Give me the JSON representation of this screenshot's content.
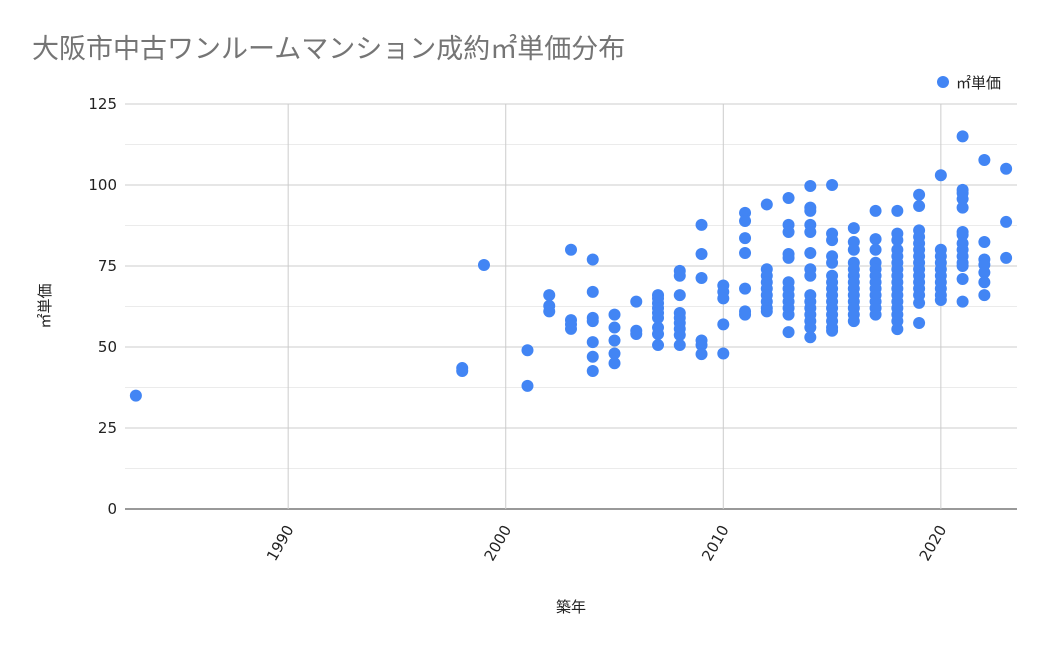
{
  "chart_data": {
    "type": "scatter",
    "title": "大阪市中古ワンルームマンション成約㎡単価分布",
    "xlabel": "築年",
    "ylabel": "㎡単価",
    "xlim": [
      1982.5,
      2023.5
    ],
    "ylim": [
      0,
      125
    ],
    "xticks": [
      "1990",
      "2000",
      "2010",
      "2020"
    ],
    "yticks": [
      "0",
      "25",
      "50",
      "75",
      "100",
      "125"
    ],
    "grid": true,
    "legend_position": "top-right",
    "color": "#4285F4",
    "series": [
      {
        "name": "㎡単価",
        "points": [
          [
            1983,
            35
          ],
          [
            1998,
            43.5
          ],
          [
            1998,
            42.6
          ],
          [
            1999,
            75.3
          ],
          [
            2001,
            49
          ],
          [
            2001,
            38
          ],
          [
            2002,
            66
          ],
          [
            2002,
            62.7
          ],
          [
            2002,
            61
          ],
          [
            2003,
            80
          ],
          [
            2003,
            58.3
          ],
          [
            2003,
            57
          ],
          [
            2003,
            55.6
          ],
          [
            2004,
            77
          ],
          [
            2004,
            67
          ],
          [
            2004,
            59
          ],
          [
            2004,
            58
          ],
          [
            2004,
            51.5
          ],
          [
            2004,
            47
          ],
          [
            2004,
            42.6
          ],
          [
            2005,
            60
          ],
          [
            2005,
            56
          ],
          [
            2005,
            52
          ],
          [
            2005,
            48
          ],
          [
            2005,
            45
          ],
          [
            2006,
            64
          ],
          [
            2006,
            55
          ],
          [
            2006,
            54
          ],
          [
            2007,
            66
          ],
          [
            2007,
            65
          ],
          [
            2007,
            63.5
          ],
          [
            2007,
            62
          ],
          [
            2007,
            60.5
          ],
          [
            2007,
            59
          ],
          [
            2007,
            56
          ],
          [
            2007,
            54
          ],
          [
            2007,
            50.6
          ],
          [
            2008,
            73.5
          ],
          [
            2008,
            72
          ],
          [
            2008,
            66
          ],
          [
            2008,
            60.5
          ],
          [
            2008,
            59
          ],
          [
            2008,
            57.4
          ],
          [
            2008,
            55.6
          ],
          [
            2008,
            53.7
          ],
          [
            2008,
            50.6
          ],
          [
            2009,
            87.7
          ],
          [
            2009,
            78.7
          ],
          [
            2009,
            71.3
          ],
          [
            2009,
            52
          ],
          [
            2009,
            50.6
          ],
          [
            2009,
            47.8
          ],
          [
            2010,
            69
          ],
          [
            2010,
            67
          ],
          [
            2010,
            65
          ],
          [
            2010,
            57
          ],
          [
            2010,
            48
          ],
          [
            2011,
            91.4
          ],
          [
            2011,
            88.9
          ],
          [
            2011,
            83.6
          ],
          [
            2011,
            79
          ],
          [
            2011,
            68
          ],
          [
            2011,
            61
          ],
          [
            2011,
            60
          ],
          [
            2012,
            94
          ],
          [
            2012,
            74
          ],
          [
            2012,
            72
          ],
          [
            2012,
            70
          ],
          [
            2012,
            68
          ],
          [
            2012,
            66
          ],
          [
            2012,
            64
          ],
          [
            2012,
            62
          ],
          [
            2012,
            61
          ],
          [
            2013,
            96
          ],
          [
            2013,
            87.7
          ],
          [
            2013,
            85.5
          ],
          [
            2013,
            78.7
          ],
          [
            2013,
            77.5
          ],
          [
            2013,
            70
          ],
          [
            2013,
            68
          ],
          [
            2013,
            66
          ],
          [
            2013,
            64
          ],
          [
            2013,
            62
          ],
          [
            2013,
            60
          ],
          [
            2013,
            54.6
          ],
          [
            2014,
            99.7
          ],
          [
            2014,
            93
          ],
          [
            2014,
            92
          ],
          [
            2014,
            87.7
          ],
          [
            2014,
            85.5
          ],
          [
            2014,
            79
          ],
          [
            2014,
            74
          ],
          [
            2014,
            72
          ],
          [
            2014,
            66
          ],
          [
            2014,
            64
          ],
          [
            2014,
            62
          ],
          [
            2014,
            60
          ],
          [
            2014,
            58
          ],
          [
            2014,
            56
          ],
          [
            2014,
            53
          ],
          [
            2015,
            100
          ],
          [
            2015,
            85
          ],
          [
            2015,
            83
          ],
          [
            2015,
            78
          ],
          [
            2015,
            76
          ],
          [
            2015,
            72
          ],
          [
            2015,
            70
          ],
          [
            2015,
            68
          ],
          [
            2015,
            66
          ],
          [
            2015,
            64
          ],
          [
            2015,
            62
          ],
          [
            2015,
            60
          ],
          [
            2015,
            58
          ],
          [
            2015,
            56
          ],
          [
            2015,
            55
          ],
          [
            2016,
            86.7
          ],
          [
            2016,
            82.4
          ],
          [
            2016,
            80
          ],
          [
            2016,
            76
          ],
          [
            2016,
            74
          ],
          [
            2016,
            72
          ],
          [
            2016,
            70
          ],
          [
            2016,
            68
          ],
          [
            2016,
            66
          ],
          [
            2016,
            64
          ],
          [
            2016,
            62
          ],
          [
            2016,
            60
          ],
          [
            2016,
            58
          ],
          [
            2017,
            92
          ],
          [
            2017,
            83.3
          ],
          [
            2017,
            80
          ],
          [
            2017,
            76
          ],
          [
            2017,
            74
          ],
          [
            2017,
            72
          ],
          [
            2017,
            70
          ],
          [
            2017,
            68
          ],
          [
            2017,
            66
          ],
          [
            2017,
            64
          ],
          [
            2017,
            62
          ],
          [
            2017,
            60
          ],
          [
            2018,
            92
          ],
          [
            2018,
            85
          ],
          [
            2018,
            83
          ],
          [
            2018,
            80
          ],
          [
            2018,
            78
          ],
          [
            2018,
            76
          ],
          [
            2018,
            74
          ],
          [
            2018,
            72
          ],
          [
            2018,
            70
          ],
          [
            2018,
            68
          ],
          [
            2018,
            66
          ],
          [
            2018,
            64
          ],
          [
            2018,
            62
          ],
          [
            2018,
            60
          ],
          [
            2018,
            58
          ],
          [
            2018,
            55.5
          ],
          [
            2019,
            97
          ],
          [
            2019,
            93.5
          ],
          [
            2019,
            86
          ],
          [
            2019,
            84
          ],
          [
            2019,
            82
          ],
          [
            2019,
            80
          ],
          [
            2019,
            78
          ],
          [
            2019,
            76
          ],
          [
            2019,
            74
          ],
          [
            2019,
            72
          ],
          [
            2019,
            70
          ],
          [
            2019,
            68
          ],
          [
            2019,
            66
          ],
          [
            2019,
            63.6
          ],
          [
            2019,
            57.4
          ],
          [
            2020,
            103
          ],
          [
            2020,
            80
          ],
          [
            2020,
            78
          ],
          [
            2020,
            76
          ],
          [
            2020,
            74
          ],
          [
            2020,
            72
          ],
          [
            2020,
            70
          ],
          [
            2020,
            68
          ],
          [
            2020,
            66
          ],
          [
            2020,
            64.5
          ],
          [
            2021,
            115
          ],
          [
            2021,
            98.5
          ],
          [
            2021,
            97.5
          ],
          [
            2021,
            95.7
          ],
          [
            2021,
            93
          ],
          [
            2021,
            85.5
          ],
          [
            2021,
            84.6
          ],
          [
            2021,
            82
          ],
          [
            2021,
            80
          ],
          [
            2021,
            78
          ],
          [
            2021,
            76
          ],
          [
            2021,
            75
          ],
          [
            2021,
            71
          ],
          [
            2021,
            64
          ],
          [
            2022,
            107.7
          ],
          [
            2022,
            82.4
          ],
          [
            2022,
            77
          ],
          [
            2022,
            75.4
          ],
          [
            2022,
            73
          ],
          [
            2022,
            70
          ],
          [
            2022,
            66
          ],
          [
            2023,
            105
          ],
          [
            2023,
            88.6
          ],
          [
            2023,
            77.5
          ]
        ]
      }
    ]
  }
}
